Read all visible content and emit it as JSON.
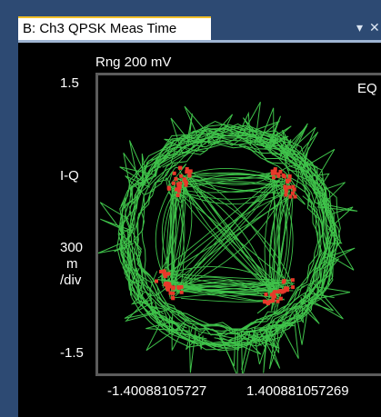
{
  "tab": {
    "title": "B: Ch3 QPSK Meas Time",
    "menu_glyph": "▾",
    "close_glyph": "✕"
  },
  "plot": {
    "range_label": "Rng 200 mV",
    "y_top": "1.5",
    "y_bottom": "-1.5",
    "y_quantity": "I-Q",
    "scale_value": "300",
    "scale_unit": "m",
    "scale_per": "/div",
    "x_left": "-1.40088105727",
    "x_right": "1.400881057269",
    "trace_mode": "EQ",
    "colors": {
      "trace": "#3fc24a",
      "symbol": "#e8392a",
      "frame": "#5c5c5c",
      "tab_bar": "#2d4a73"
    }
  },
  "chart_data": {
    "type": "scatter",
    "xlim": [
      -1.5,
      1.5
    ],
    "ylim": [
      -1.5,
      1.5
    ],
    "symbol_points": [
      {
        "i": -0.62,
        "q": 0.75
      },
      {
        "i": -0.7,
        "q": 0.62
      },
      {
        "i": -0.55,
        "q": 0.82
      },
      {
        "i": 0.72,
        "q": 0.72
      },
      {
        "i": 0.8,
        "q": 0.58
      },
      {
        "i": 0.6,
        "q": 0.8
      },
      {
        "i": -0.78,
        "q": -0.62
      },
      {
        "i": -0.68,
        "q": -0.72
      },
      {
        "i": -0.85,
        "q": -0.52
      },
      {
        "i": 0.78,
        "q": -0.62
      },
      {
        "i": 0.65,
        "q": -0.75
      },
      {
        "i": 0.55,
        "q": -0.82
      }
    ]
  }
}
